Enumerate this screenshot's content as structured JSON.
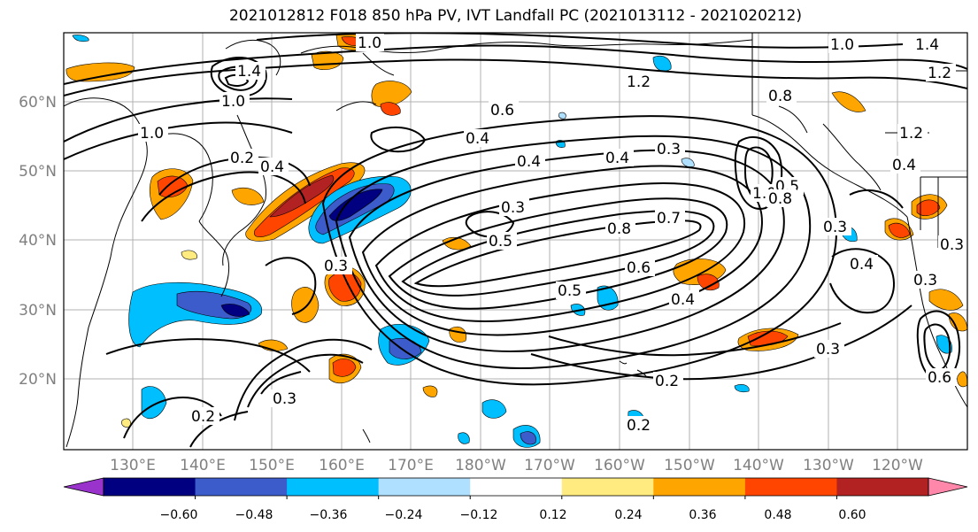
{
  "title": "2021012812 F018 850 hPa PV, IVT Landfall PC (2021013112 - 2021020212)",
  "lat_labels": [
    "60°N",
    "50°N",
    "40°N",
    "30°N",
    "20°N"
  ],
  "lon_labels": [
    "130°E",
    "140°E",
    "150°E",
    "160°E",
    "170°E",
    "180°W",
    "170°W",
    "160°W",
    "150°W",
    "140°W",
    "130°W",
    "120°W"
  ],
  "colorbar": {
    "colors": [
      "#9933cc",
      "#000080",
      "#3d5ccc",
      "#00bfff",
      "#b0e0ff",
      "#ffffff",
      "#ffeb80",
      "#ffa500",
      "#ff4500",
      "#b22222",
      "#ff88aa"
    ],
    "tick_labels": [
      "−0.60",
      "−0.48",
      "−0.36",
      "−0.24",
      "−0.12",
      "0.12",
      "0.24",
      "0.36",
      "0.48",
      "0.60"
    ]
  },
  "contour_labels": [
    "1.0",
    "1.0",
    "1.4",
    "1.2",
    "0.8",
    "0.6",
    "0.4",
    "0.3",
    "0.2",
    "0.4",
    "0.4",
    "0.3",
    "0.5",
    "0.8",
    "0.7",
    "0.6",
    "0.5",
    "0.4",
    "0.3",
    "0.2",
    "0.3",
    "0.2",
    "0.3",
    "0.4",
    "0.3",
    "0.6",
    "1.0",
    "0.5",
    "0.8",
    "1.2",
    "0.4",
    "0.3",
    "0.2",
    "0.3",
    "1.4",
    "1.0",
    "1.2",
    "1.0",
    "0.4"
  ]
}
